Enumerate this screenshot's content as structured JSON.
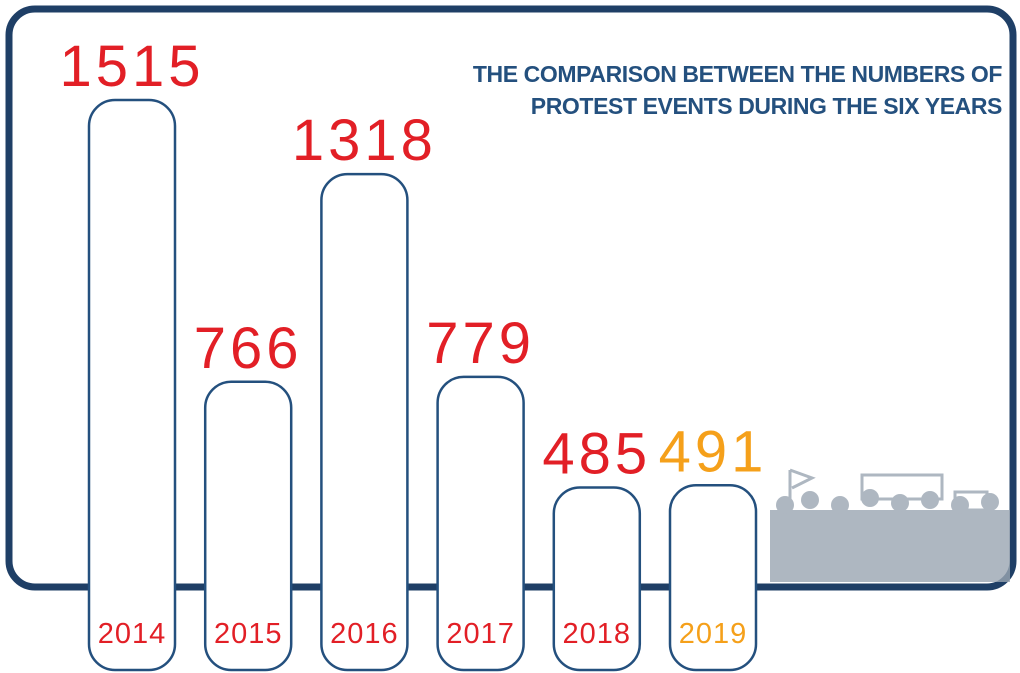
{
  "chart_data": {
    "type": "bar",
    "title": "THE COMPARISON BETWEEN THE NUMBERS OF PROTEST EVENTS DURING THE SIX YEARS",
    "categories": [
      "2014",
      "2015",
      "2016",
      "2017",
      "2018",
      "2019"
    ],
    "values": [
      1515,
      766,
      1318,
      779,
      485,
      491
    ],
    "colors": [
      "#e21f26",
      "#e21f26",
      "#e21f26",
      "#e21f26",
      "#e21f26",
      "#f5a01a"
    ],
    "bar_outline_color": "#24507e"
  }
}
